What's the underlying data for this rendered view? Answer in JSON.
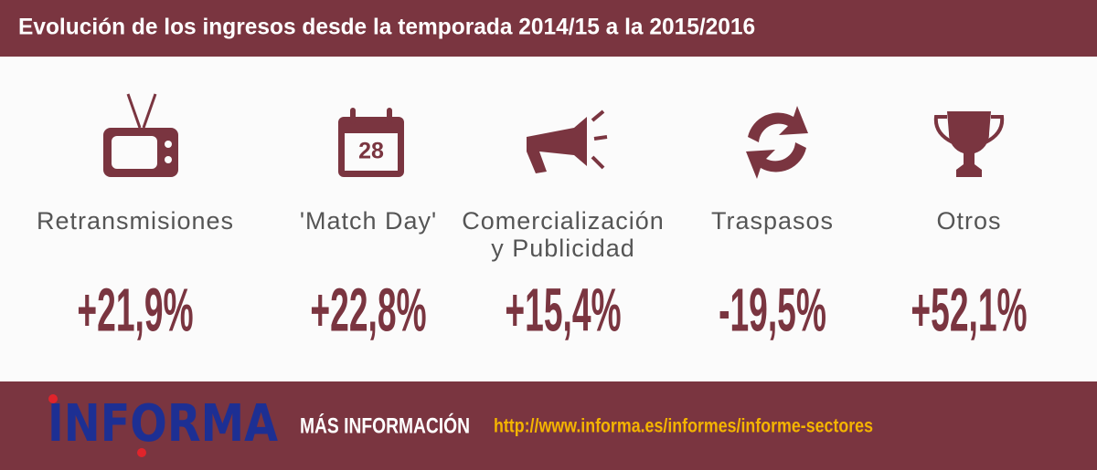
{
  "header": {
    "title": "Evolución de los ingresos desde la temporada 2014/15 a la 2015/2016"
  },
  "items": [
    {
      "label": [
        "Retransmisiones"
      ],
      "value": "+21,9%"
    },
    {
      "label": [
        "'Match Day'"
      ],
      "value": "+22,8%",
      "icon_text": "28"
    },
    {
      "label": [
        "Comercialización",
        "y Publicidad"
      ],
      "value": "+15,4%"
    },
    {
      "label": [
        "Traspasos"
      ],
      "value": "-19,5%"
    },
    {
      "label": [
        "Otros"
      ],
      "value": "+52,1%"
    }
  ],
  "footer": {
    "logo": "INFORMA",
    "more_info": "MÁS INFORMACIÓN",
    "url": "http://www.informa.es/informes/informe-sectores"
  }
}
